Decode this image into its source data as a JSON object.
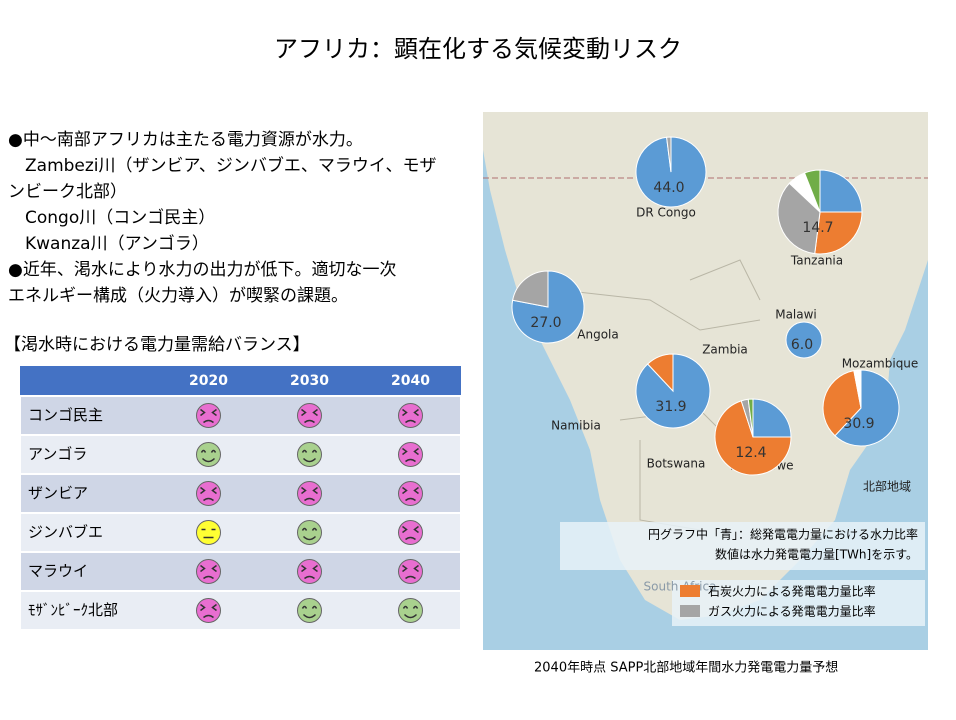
{
  "title": "アフリカ：顕在化する気候変動リスク",
  "text_lines": [
    "●中～南部アフリカは主たる電力資源が水力。",
    "　Zambezi川（ザンビア、ジンバブエ、マラウイ、モザ",
    "ンビーク北部）",
    "　Congo川（コンゴ民主）",
    "　Kwanza川（アンゴラ）",
    "●近年、渇水により水力の出力が低下。適切な一次",
    "エネルギー構成（火力導入）が喫緊の課題。"
  ],
  "table": {
    "title": "【渇水時における電力量需給バランス】",
    "header": [
      "2020",
      "2030",
      "2040"
    ],
    "rows": [
      {
        "label": "コンゴ民主",
        "status": [
          "sad",
          "sad",
          "sad"
        ]
      },
      {
        "label": "アンゴラ",
        "status": [
          "happy",
          "happy",
          "sad"
        ]
      },
      {
        "label": "ザンビア",
        "status": [
          "sad",
          "sad",
          "sad"
        ]
      },
      {
        "label": "ジンバブエ",
        "status": [
          "neutral",
          "happy",
          "sad"
        ]
      },
      {
        "label": "マラウイ",
        "status": [
          "sad",
          "sad",
          "sad"
        ]
      },
      {
        "label": "ﾓｻﾞﾝﾋﾞｰｸ北部",
        "status": [
          "sad",
          "happy",
          "happy"
        ]
      }
    ]
  },
  "map": {
    "place_labels": [
      "DR Congo",
      "Tanzania",
      "Angola",
      "Malawi",
      "Zambia",
      "Mozambique",
      "Namibia",
      "Botswana",
      "Zimbabwe",
      "South Africa",
      "北部地域"
    ],
    "pies": [
      {
        "label": "44.0",
        "slices": [
          {
            "value": 98,
            "color": "#5b9bd5"
          },
          {
            "value": 2,
            "color": "#a5a5a5"
          }
        ]
      },
      {
        "label": "14.7",
        "slices": [
          {
            "value": 25,
            "color": "#5b9bd5"
          },
          {
            "value": 27,
            "color": "#ed7d31"
          },
          {
            "value": 35,
            "color": "#a5a5a5"
          },
          {
            "value": 7,
            "color": "#ffffff"
          },
          {
            "value": 6,
            "color": "#70ad47"
          }
        ]
      },
      {
        "label": "27.0",
        "slices": [
          {
            "value": 78,
            "color": "#5b9bd5"
          },
          {
            "value": 22,
            "color": "#a5a5a5"
          }
        ]
      },
      {
        "label": "6.0",
        "slices": [
          {
            "value": 100,
            "color": "#5b9bd5"
          }
        ]
      },
      {
        "label": "31.9",
        "slices": [
          {
            "value": 88,
            "color": "#5b9bd5"
          },
          {
            "value": 12,
            "color": "#ed7d31"
          }
        ]
      },
      {
        "label": "12.4",
        "slices": [
          {
            "value": 25,
            "color": "#5b9bd5"
          },
          {
            "value": 70,
            "color": "#ed7d31"
          },
          {
            "value": 3,
            "color": "#a5a5a5"
          },
          {
            "value": 2,
            "color": "#70ad47"
          }
        ]
      },
      {
        "label": "30.9",
        "slices": [
          {
            "value": 62,
            "color": "#5b9bd5"
          },
          {
            "value": 35,
            "color": "#ed7d31"
          },
          {
            "value": 3,
            "color": "#ffffff"
          }
        ]
      }
    ],
    "note_lines": [
      "円グラフ中「青」：総発電電力量における水力比率",
      "数値は水力発電電力量[TWh]を示す。"
    ],
    "legend": [
      {
        "label": "石炭火力による発電電力量比率",
        "color": "#ed7d31"
      },
      {
        "label": "ガス火力による発電電力量比率",
        "color": "#a5a5a5"
      }
    ]
  },
  "caption": "2040年時点 SAPP北部地域年間水力発電電力量予想"
}
